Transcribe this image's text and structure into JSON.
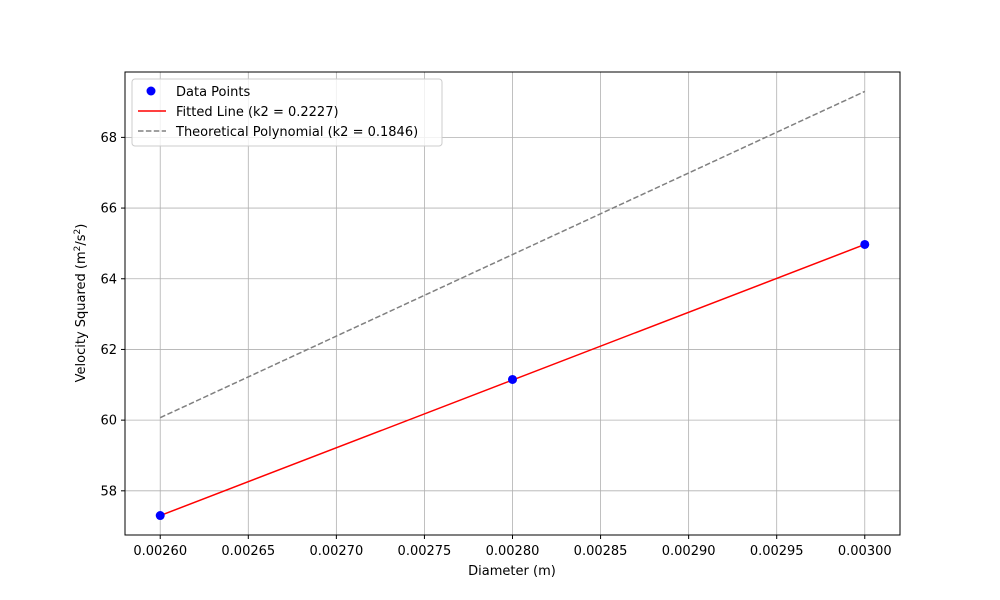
{
  "chart_data": {
    "type": "line",
    "title": "",
    "xlabel": "Diameter (m)",
    "ylabel_prefix": "Velocity Squared (m",
    "ylabel_sup1": "2",
    "ylabel_mid": "/s",
    "ylabel_sup2": "2",
    "ylabel_suffix": ")",
    "xlim": [
      0.00258,
      0.00302
    ],
    "ylim": [
      56.75,
      69.85
    ],
    "xticks": [
      0.0026,
      0.00265,
      0.0027,
      0.00275,
      0.0028,
      0.00285,
      0.0029,
      0.00295,
      0.003
    ],
    "xtick_labels": [
      "0.00260",
      "0.00265",
      "0.00270",
      "0.00275",
      "0.00280",
      "0.00285",
      "0.00290",
      "0.00295",
      "0.00300"
    ],
    "yticks": [
      58,
      60,
      62,
      64,
      66,
      68
    ],
    "ytick_labels": [
      "58",
      "60",
      "62",
      "64",
      "66",
      "68"
    ],
    "grid": true,
    "legend_position": "top-left",
    "series": [
      {
        "name": "Data Points",
        "kind": "scatter",
        "color": "#0000ff",
        "x": [
          0.0026,
          0.0028,
          0.003
        ],
        "y": [
          57.3,
          61.15,
          64.97
        ]
      },
      {
        "name": "Fitted Line (k2 = 0.2227)",
        "kind": "line",
        "color": "#ff0000",
        "dash": "solid",
        "x": [
          0.0026,
          0.003
        ],
        "y": [
          57.3,
          64.97
        ]
      },
      {
        "name": "Theoretical Polynomial (k2 = 0.1846)",
        "kind": "line",
        "color": "#808080",
        "dash": "dashed",
        "x": [
          0.0026,
          0.003
        ],
        "y": [
          60.07,
          69.3
        ]
      }
    ]
  }
}
